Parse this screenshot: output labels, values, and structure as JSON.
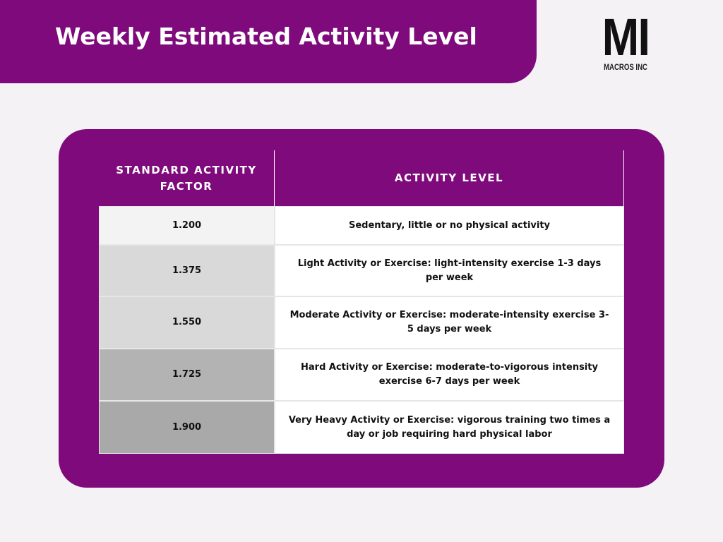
{
  "header": {
    "title": "Weekly Estimated Activity Level",
    "logo": {
      "mark": "MI",
      "name": "MACROS INC"
    }
  },
  "table": {
    "columns": [
      "STANDARD ACTIVITY FACTOR",
      "ACTIVITY LEVEL"
    ],
    "rows": [
      [
        "1.200",
        "Sedentary, little or no physical activity"
      ],
      [
        "1.375",
        "Light Activity or Exercise: light-intensity exercise 1-3 days per week"
      ],
      [
        "1.550",
        "Moderate Activity or Exercise: moderate-intensity exercise 3-5 days per week"
      ],
      [
        "1.725",
        "Hard Activity or Exercise: moderate-to-vigorous intensity exercise 6-7 days per week"
      ],
      [
        "1.900",
        "Very Heavy Activity or Exercise: vigorous training two times a day or job requiring hard physical labor"
      ]
    ]
  }
}
